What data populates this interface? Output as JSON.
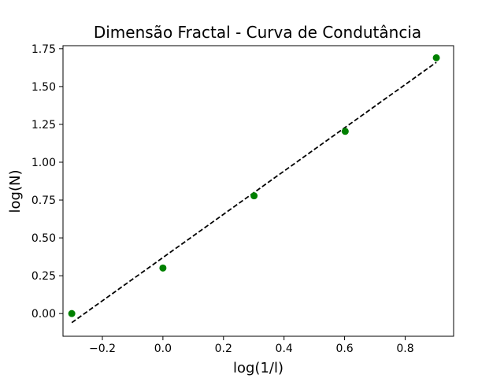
{
  "chart_data": {
    "type": "scatter",
    "title": "Dimensão Fractal - Curva de Condutância",
    "xlabel": "log(1/l)",
    "ylabel": "log(N)",
    "xlim": [
      -0.33,
      0.96
    ],
    "ylim": [
      -0.15,
      1.77
    ],
    "xticks": [
      -0.2,
      0.0,
      0.2,
      0.4,
      0.6,
      0.8
    ],
    "xtick_labels": [
      "−0.2",
      "0.0",
      "0.2",
      "0.4",
      "0.6",
      "0.8"
    ],
    "yticks": [
      0.0,
      0.25,
      0.5,
      0.75,
      1.0,
      1.25,
      1.5,
      1.75
    ],
    "ytick_labels": [
      "0.00",
      "0.25",
      "0.50",
      "0.75",
      "1.00",
      "1.25",
      "1.50",
      "1.75"
    ],
    "grid": false,
    "series": [
      {
        "type": "scatter",
        "color": "#008000",
        "x": [
          -0.301,
          0.0,
          0.301,
          0.602,
          0.903
        ],
        "y": [
          0.0,
          0.301,
          0.778,
          1.204,
          1.69
        ]
      },
      {
        "type": "line",
        "style": "dashed",
        "color": "#000000",
        "x": [
          -0.301,
          0.903
        ],
        "y": [
          -0.06,
          1.66
        ]
      }
    ]
  }
}
